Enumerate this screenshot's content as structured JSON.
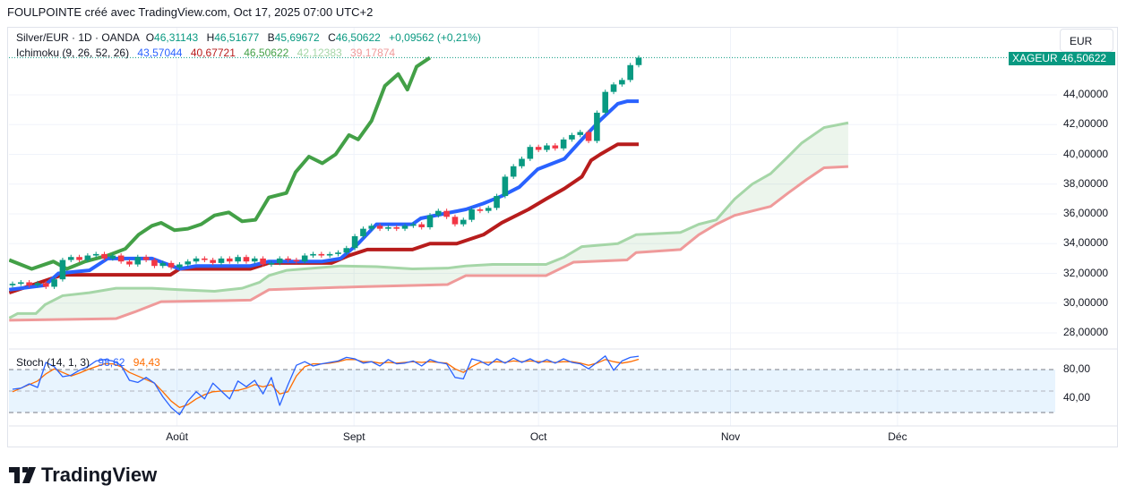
{
  "header": {
    "title": "FOULPOINTE créé avec TradingView.com, Oct 17, 2025 07:00 UTC+2"
  },
  "legend": {
    "symbol": "Silver/EUR · 1D · OANDA",
    "o_label": "O",
    "o": "46,31143",
    "h_label": "H",
    "h": "46,51677",
    "b_label": "B",
    "b": "45,69672",
    "c_label": "C",
    "c": "46,50622",
    "change": "+0,09562 (+0,21%)",
    "ichimoku": "Ichimoku (9, 26, 52, 26)",
    "tenkan": "43,57044",
    "kijun": "40,67721",
    "chikou": "46,50622",
    "spanA": "42,12383",
    "spanB": "39,17874",
    "stoch": "Stoch (14, 1, 3)",
    "k": "98,62",
    "d": "94,43"
  },
  "currency": "EUR",
  "price_tag": {
    "symbol": "XAGEUR",
    "value": "46,50622"
  },
  "logo": "TradingView",
  "colors": {
    "up": "#089981",
    "down": "#f23645",
    "tenkan": "#2962ff",
    "kijun": "#b71c1c",
    "chikou": "#43a047",
    "spanA": "#a5d6a7",
    "spanB": "#ef9a9a",
    "k": "#2962ff",
    "d": "#ff6d00"
  },
  "chart_data": {
    "type": "candlestick",
    "title": "Silver/EUR · 1D · OANDA",
    "price_ticks": [
      "44,00000",
      "42,00000",
      "40,00000",
      "38,00000",
      "36,00000",
      "34,00000",
      "32,00000",
      "30,00000",
      "28,00000"
    ],
    "price_tick_values": [
      44,
      42,
      40,
      38,
      36,
      34,
      32,
      30,
      28
    ],
    "x_ticks": [
      {
        "label": "Août",
        "bar": 19.7
      },
      {
        "label": "Sept",
        "bar": 40.9
      },
      {
        "label": "Oct",
        "bar": 63
      },
      {
        "label": "Nov",
        "bar": 86
      },
      {
        "label": "Déc",
        "bar": 106
      }
    ],
    "first_open": 31.2,
    "closes": [
      31.3,
      31.4,
      31.2,
      31.35,
      31.1,
      31.6,
      32.9,
      33.1,
      32.9,
      33.2,
      33.3,
      33.0,
      33.2,
      32.8,
      32.6,
      33.1,
      32.9,
      32.5,
      32.7,
      32.4,
      32.6,
      32.8,
      33.0,
      32.9,
      32.7,
      33.0,
      32.8,
      33.1,
      32.8,
      33.0,
      32.6,
      32.7,
      33.0,
      32.9,
      32.8,
      33.2,
      33.3,
      33.2,
      33.3,
      33.4,
      33.7,
      34.5,
      35.0,
      35.2,
      35.0,
      35.1,
      35.0,
      35.2,
      35.3,
      35.1,
      35.9,
      36.2,
      35.8,
      35.3,
      35.6,
      36.3,
      36.2,
      36.4,
      37.2,
      38.5,
      39.2,
      39.7,
      40.5,
      40.3,
      40.6,
      40.4,
      41.0,
      41.3,
      41.5,
      40.9,
      42.8,
      44.2,
      44.7,
      45.0,
      46.0,
      46.5
    ],
    "tenkan": [
      [
        -0.4,
        30.9
      ],
      [
        3.9,
        31.2
      ],
      [
        5.5,
        32.0
      ],
      [
        9.2,
        32.2
      ],
      [
        11.4,
        33.0
      ],
      [
        16.7,
        33.0
      ],
      [
        20,
        32.3
      ],
      [
        22,
        32.5
      ],
      [
        28.5,
        32.5
      ],
      [
        30.7,
        32.8
      ],
      [
        37.1,
        32.8
      ],
      [
        39.3,
        33.0
      ],
      [
        41.4,
        34.0
      ],
      [
        43.6,
        35.3
      ],
      [
        47.9,
        35.3
      ],
      [
        48.9,
        35.7
      ],
      [
        54.3,
        36.3
      ],
      [
        56.4,
        36.7
      ],
      [
        58.6,
        37.2
      ],
      [
        60.7,
        37.8
      ],
      [
        62.9,
        39.0
      ],
      [
        66.1,
        39.7
      ],
      [
        68.2,
        41.0
      ],
      [
        70.4,
        42.3
      ],
      [
        72.5,
        43.4
      ],
      [
        73.6,
        43.57
      ],
      [
        75,
        43.57
      ]
    ],
    "kijun": [
      [
        -0.4,
        30.7
      ],
      [
        2.8,
        31.3
      ],
      [
        4.9,
        31.7
      ],
      [
        6,
        31.9
      ],
      [
        18.9,
        31.9
      ],
      [
        20,
        32.3
      ],
      [
        28.5,
        32.3
      ],
      [
        30.7,
        32.7
      ],
      [
        38.2,
        32.7
      ],
      [
        40.3,
        33.2
      ],
      [
        42.5,
        33.6
      ],
      [
        47.9,
        33.6
      ],
      [
        50,
        34.0
      ],
      [
        53.2,
        34.0
      ],
      [
        56.4,
        34.6
      ],
      [
        58.6,
        35.4
      ],
      [
        61.8,
        36.3
      ],
      [
        63.9,
        37.0
      ],
      [
        66.1,
        37.7
      ],
      [
        68.2,
        38.5
      ],
      [
        69.3,
        39.6
      ],
      [
        70.4,
        40.0
      ],
      [
        72.5,
        40.68
      ],
      [
        75,
        40.68
      ]
    ],
    "chikou": [
      [
        -0.4,
        32.9
      ],
      [
        2.3,
        32.3
      ],
      [
        4.9,
        32.8
      ],
      [
        6.5,
        32.3
      ],
      [
        8.7,
        32.8
      ],
      [
        11.4,
        33.2
      ],
      [
        13.5,
        33.65
      ],
      [
        15.1,
        34.6
      ],
      [
        16.7,
        35.2
      ],
      [
        17.8,
        35.4
      ],
      [
        19.4,
        34.9
      ],
      [
        21,
        35.0
      ],
      [
        22.6,
        35.3
      ],
      [
        24.2,
        35.9
      ],
      [
        25.9,
        36.1
      ],
      [
        27.5,
        35.5
      ],
      [
        29.1,
        35.6
      ],
      [
        30.7,
        37.1
      ],
      [
        32.8,
        37.4
      ],
      [
        33.9,
        38.8
      ],
      [
        35.5,
        39.85
      ],
      [
        37.1,
        39.4
      ],
      [
        38.7,
        40.0
      ],
      [
        40.3,
        41.3
      ],
      [
        41.4,
        41.0
      ],
      [
        43,
        42.25
      ],
      [
        44.6,
        44.6
      ],
      [
        46.2,
        45.4
      ],
      [
        47.3,
        44.35
      ],
      [
        48.4,
        45.9
      ],
      [
        50,
        46.5
      ]
    ],
    "spanA": [
      [
        -0.4,
        29.0
      ],
      [
        0.6,
        29.3
      ],
      [
        2.8,
        29.3
      ],
      [
        3.9,
        29.9
      ],
      [
        6,
        30.5
      ],
      [
        9.2,
        30.7
      ],
      [
        12.4,
        31.0
      ],
      [
        16.7,
        31.0
      ],
      [
        20,
        30.9
      ],
      [
        24.2,
        30.8
      ],
      [
        27.5,
        31.0
      ],
      [
        29.6,
        31.4
      ],
      [
        30.7,
        31.85
      ],
      [
        32.8,
        32.2
      ],
      [
        39.3,
        32.5
      ],
      [
        43.6,
        32.45
      ],
      [
        47.9,
        32.3
      ],
      [
        52.1,
        32.35
      ],
      [
        54.3,
        32.5
      ],
      [
        57.5,
        32.6
      ],
      [
        63.9,
        32.6
      ],
      [
        66.1,
        33.1
      ],
      [
        68.2,
        33.8
      ],
      [
        72.5,
        34.0
      ],
      [
        74.7,
        34.6
      ],
      [
        80,
        34.75
      ],
      [
        82.2,
        35.3
      ],
      [
        84.3,
        35.6
      ],
      [
        86.5,
        37.0
      ],
      [
        88.6,
        38.0
      ],
      [
        90.8,
        38.7
      ],
      [
        92.9,
        39.85
      ],
      [
        94.5,
        40.75
      ],
      [
        97.2,
        41.8
      ],
      [
        100.1,
        42.12
      ]
    ],
    "spanB": [
      [
        -0.4,
        28.85
      ],
      [
        12.4,
        28.96
      ],
      [
        14.6,
        29.4
      ],
      [
        17.8,
        30.1
      ],
      [
        28.5,
        30.2
      ],
      [
        30.7,
        30.9
      ],
      [
        41.4,
        31.1
      ],
      [
        52.1,
        31.25
      ],
      [
        54.3,
        31.85
      ],
      [
        63.9,
        31.85
      ],
      [
        67.2,
        32.75
      ],
      [
        73.6,
        32.9
      ],
      [
        74.7,
        33.4
      ],
      [
        80,
        33.6
      ],
      [
        82.2,
        34.6
      ],
      [
        84.3,
        35.3
      ],
      [
        86.5,
        35.9
      ],
      [
        90.8,
        36.5
      ],
      [
        92.9,
        37.4
      ],
      [
        95.1,
        38.3
      ],
      [
        97.2,
        39.1
      ],
      [
        100.1,
        39.18
      ]
    ],
    "stoch": {
      "levels": [
        80,
        50,
        20
      ],
      "tick_labels": [
        "80,00",
        "40,00"
      ],
      "tick_values": [
        80,
        40
      ],
      "k": [
        52.5,
        54,
        60,
        55,
        90,
        84,
        70,
        72,
        79,
        84,
        92,
        94,
        92,
        86,
        65,
        62,
        69,
        61,
        42,
        27,
        17,
        36,
        49,
        39,
        61,
        50,
        39,
        64,
        56,
        65,
        46,
        69,
        30,
        59,
        86,
        91,
        85,
        88,
        90,
        92,
        97,
        95,
        89,
        91,
        85,
        94,
        88,
        89,
        92,
        85,
        94,
        90,
        88,
        69,
        67,
        95,
        92,
        86,
        95,
        89,
        96,
        90,
        95,
        89,
        94,
        89,
        95,
        90,
        88,
        81,
        90,
        99,
        79,
        92,
        97,
        98.6
      ],
      "d": [
        49,
        54,
        59,
        64,
        74,
        81,
        76,
        71,
        75,
        80,
        84,
        88,
        88,
        84,
        76,
        71,
        66,
        61,
        49,
        36,
        27,
        31,
        39,
        45,
        49,
        50,
        50,
        51,
        54,
        59,
        56,
        59,
        46,
        49,
        71,
        84,
        88,
        88,
        89,
        91,
        94,
        94,
        91,
        91,
        89,
        90,
        89,
        90,
        91,
        90,
        91,
        90,
        89,
        81,
        76,
        84,
        90,
        90,
        91,
        90,
        92,
        91,
        92,
        91,
        91,
        90,
        91,
        91,
        89,
        86,
        89,
        94,
        91,
        89,
        91,
        94.4
      ]
    }
  }
}
